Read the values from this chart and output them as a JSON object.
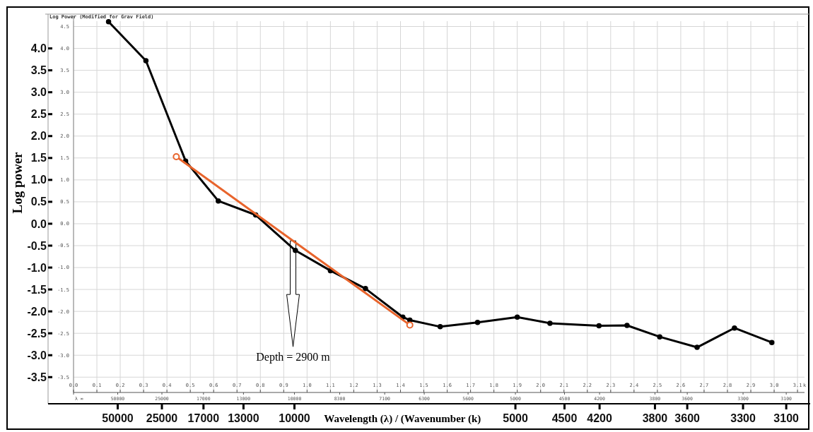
{
  "chart_data": {
    "type": "line",
    "title": "Log Power (Modified for Grav Field)",
    "xlabel": "Wavelength (λ) / (Wavenumber (k)",
    "ylabel": "Log power",
    "grid": true,
    "marker": "circle",
    "line_style": "solid",
    "xlim": [
      0,
      3.13
    ],
    "ylim": [
      -3.85,
      4.75
    ],
    "xticks": [
      {
        "value": 0,
        "label": "0.0"
      },
      {
        "value": 0.1,
        "label": "0.1"
      },
      {
        "value": 0.2,
        "label": "0.2"
      },
      {
        "value": 0.3,
        "label": "0.3"
      },
      {
        "value": 0.4,
        "label": "0.4"
      },
      {
        "value": 0.5,
        "label": "0.5"
      },
      {
        "value": 0.6,
        "label": "0.6"
      },
      {
        "value": 0.7,
        "label": "0.7"
      },
      {
        "value": 0.8,
        "label": "0.8"
      },
      {
        "value": 0.9,
        "label": "0.9"
      },
      {
        "value": 1,
        "label": "1.0"
      },
      {
        "value": 1.1,
        "label": "1.1"
      },
      {
        "value": 1.2,
        "label": "1.2"
      },
      {
        "value": 1.3,
        "label": "1.3"
      },
      {
        "value": 1.4,
        "label": "1.4"
      },
      {
        "value": 1.5,
        "label": "1.5"
      },
      {
        "value": 1.6,
        "label": "1.6"
      },
      {
        "value": 1.7,
        "label": "1.7"
      },
      {
        "value": 1.8,
        "label": "1.8"
      },
      {
        "value": 1.9,
        "label": "1.9"
      },
      {
        "value": 2,
        "label": "2.0"
      },
      {
        "value": 2.1,
        "label": "2.1"
      },
      {
        "value": 2.2,
        "label": "2.2"
      },
      {
        "value": 2.3,
        "label": "2.3"
      },
      {
        "value": 2.4,
        "label": "2.4"
      },
      {
        "value": 2.5,
        "label": "2.5"
      },
      {
        "value": 2.6,
        "label": "2.6"
      },
      {
        "value": 2.7,
        "label": "2.7"
      },
      {
        "value": 2.8,
        "label": "2.8"
      },
      {
        "value": 2.9,
        "label": "2.9"
      },
      {
        "value": 3,
        "label": "3.0"
      },
      {
        "value": 3.1,
        "label": "3.1"
      }
    ],
    "y2ticks": [
      {
        "value": 4.5,
        "label": "4.5"
      },
      {
        "value": 4,
        "label": "4.0"
      },
      {
        "value": 3.5,
        "label": "3.5"
      },
      {
        "value": 3,
        "label": "3.0"
      },
      {
        "value": 2.5,
        "label": "2.5"
      },
      {
        "value": 2,
        "label": "2.0"
      },
      {
        "value": 1.5,
        "label": "1.5"
      },
      {
        "value": 1,
        "label": "1.0"
      },
      {
        "value": 0.5,
        "label": "0.5"
      },
      {
        "value": 0,
        "label": "0.0"
      },
      {
        "value": -0.5,
        "label": "-0.5"
      },
      {
        "value": -1,
        "label": "-1.0"
      },
      {
        "value": -1.5,
        "label": "-1.5"
      },
      {
        "value": -2,
        "label": "-2.0"
      },
      {
        "value": -2.5,
        "label": "-2.5"
      },
      {
        "value": -3,
        "label": "-3.0"
      },
      {
        "value": -3.5,
        "label": "-3.5"
      }
    ],
    "y2lim": [
      -3.85,
      4.75
    ],
    "yticks": [
      {
        "value": 4,
        "label": "4.0"
      },
      {
        "value": 3.5,
        "label": "3.5"
      },
      {
        "value": 3,
        "label": "3.0"
      },
      {
        "value": 2.5,
        "label": "2.5"
      },
      {
        "value": 2,
        "label": "2.0"
      },
      {
        "value": 1.5,
        "label": "1.5"
      },
      {
        "value": 1,
        "label": "1.0"
      },
      {
        "value": 0.5,
        "label": "0.5"
      },
      {
        "value": 0,
        "label": "0.0"
      },
      {
        "value": -0.5,
        "label": "-0.5"
      },
      {
        "value": -1,
        "label": "-1.0"
      },
      {
        "value": -1.5,
        "label": "-1.5"
      },
      {
        "value": -2,
        "label": "-2.0"
      },
      {
        "value": -2.5,
        "label": "-2.5"
      },
      {
        "value": -3,
        "label": "-3.0"
      },
      {
        "value": -3.5,
        "label": "-3.5"
      }
    ],
    "series": [
      {
        "color": "#000000",
        "x": [
          0.15,
          0.31,
          0.48,
          0.62,
          0.78,
          0.95,
          1.1,
          1.25,
          1.41,
          1.44,
          1.57,
          1.73,
          1.9,
          2.04,
          2.25,
          2.37,
          2.51,
          2.67,
          2.83,
          2.99
        ],
        "values": [
          4.61,
          3.72,
          1.43,
          0.52,
          0.2,
          -0.61,
          -1.07,
          -1.48,
          -2.13,
          -2.2,
          -2.35,
          -2.25,
          -2.13,
          -2.27,
          -2.33,
          -2.32,
          -2.58,
          -2.82,
          -2.38,
          -2.71
        ]
      },
      {
        "color": "#e8642c",
        "x": [
          0.44,
          1.44
        ],
        "values": [
          1.53,
          -2.31
        ]
      }
    ],
    "annotations": [
      "Depth = 2900 m",
      "k",
      "λ ∞",
      "50000",
      "25000",
      "17000",
      "13000",
      "10000",
      "8300",
      "7100",
      "6300",
      "5600",
      "5000",
      "4500",
      "4200",
      "3800",
      "3600",
      "3300",
      "3100",
      "50000",
      "25000",
      "17000",
      "13000",
      "10000",
      "5000",
      "4500",
      "4200",
      "3800",
      "3600",
      "3300",
      "3100"
    ]
  }
}
